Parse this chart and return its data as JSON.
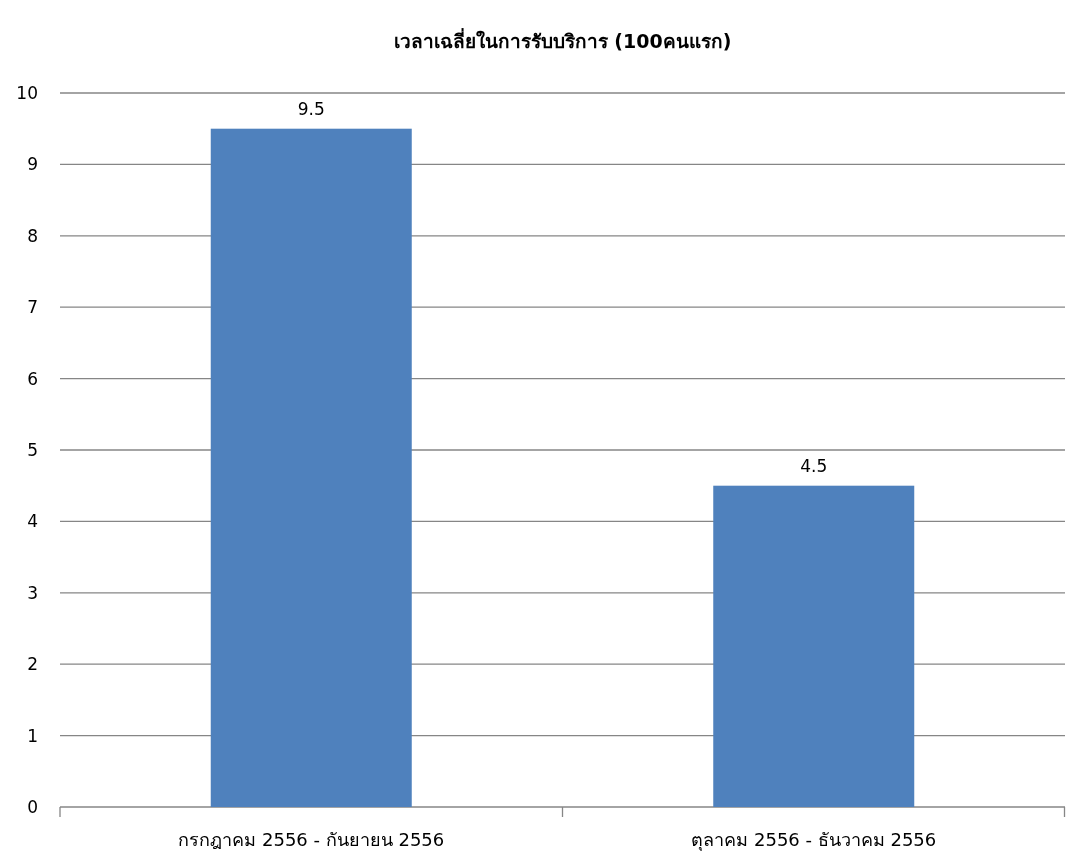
{
  "chart_data": {
    "type": "bar",
    "title": "เวลาเฉลี่ยในการรับบริการ (100คนแรก)",
    "categories": [
      "กรกฎาคม 2556 - กันยายน 2556",
      "ตุลาคม 2556 - ธันวาคม 2556"
    ],
    "values": [
      9.5,
      4.5
    ],
    "color": "#4f81bd",
    "ylim": [
      0,
      10
    ],
    "yticks": [
      0,
      1,
      2,
      3,
      4,
      5,
      6,
      7,
      8,
      9,
      10
    ],
    "grid": "y",
    "data_labels": true
  }
}
